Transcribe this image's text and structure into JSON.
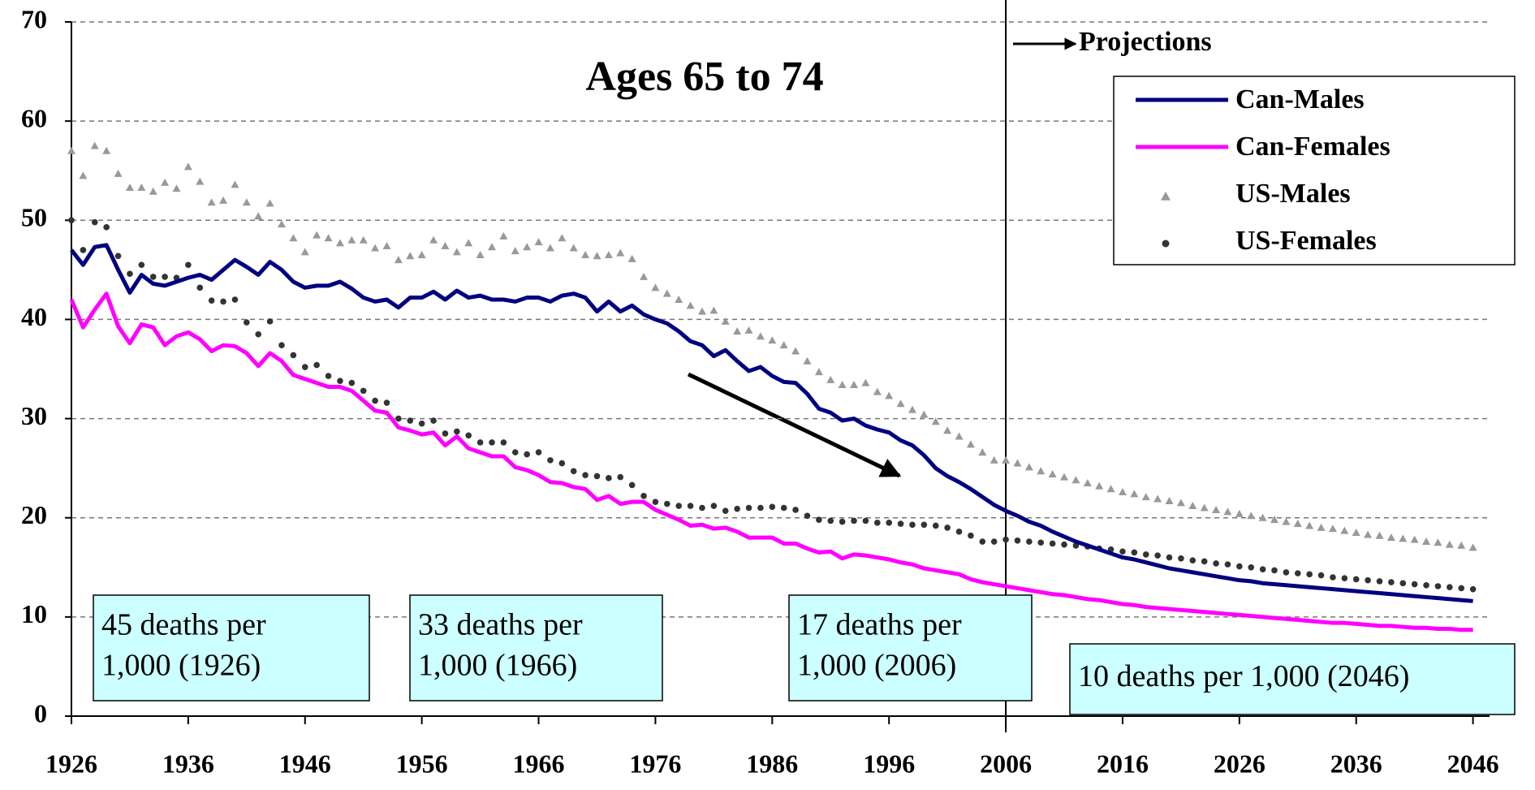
{
  "chart_data": {
    "type": "line",
    "title": "Ages 65 to 74",
    "projection_label": "Projections",
    "projection_x": 2006,
    "x": [
      1926,
      1927,
      1928,
      1929,
      1930,
      1931,
      1932,
      1933,
      1934,
      1935,
      1936,
      1937,
      1938,
      1939,
      1940,
      1941,
      1942,
      1943,
      1944,
      1945,
      1946,
      1947,
      1948,
      1949,
      1950,
      1951,
      1952,
      1953,
      1954,
      1955,
      1956,
      1957,
      1958,
      1959,
      1960,
      1961,
      1962,
      1963,
      1964,
      1965,
      1966,
      1967,
      1968,
      1969,
      1970,
      1971,
      1972,
      1973,
      1974,
      1975,
      1976,
      1977,
      1978,
      1979,
      1980,
      1981,
      1982,
      1983,
      1984,
      1985,
      1986,
      1987,
      1988,
      1989,
      1990,
      1991,
      1992,
      1993,
      1994,
      1995,
      1996,
      1997,
      1998,
      1999,
      2000,
      2001,
      2002,
      2003,
      2004,
      2005,
      2006,
      2007,
      2008,
      2009,
      2010,
      2011,
      2012,
      2013,
      2014,
      2015,
      2016,
      2017,
      2018,
      2019,
      2020,
      2021,
      2022,
      2023,
      2024,
      2025,
      2026,
      2027,
      2028,
      2029,
      2030,
      2031,
      2032,
      2033,
      2034,
      2035,
      2036,
      2037,
      2038,
      2039,
      2040,
      2041,
      2042,
      2043,
      2044,
      2045,
      2046
    ],
    "series": [
      {
        "name": "Can-Males",
        "color": "#000080",
        "style": "line",
        "values": [
          47,
          45.5,
          47.3,
          47.5,
          45,
          42.7,
          44.5,
          43.6,
          43.4,
          43.8,
          44.2,
          44.5,
          44,
          45,
          46,
          45.3,
          44.5,
          45.8,
          45,
          43.8,
          43.2,
          43.4,
          43.4,
          43.8,
          43.1,
          42.2,
          41.8,
          42,
          41.2,
          42.2,
          42.2,
          42.8,
          42,
          42.9,
          42.2,
          42.4,
          42,
          42,
          41.8,
          42.2,
          42.2,
          41.8,
          42.4,
          42.6,
          42.2,
          40.8,
          41.8,
          40.8,
          41.4,
          40.5,
          40,
          39.6,
          38.8,
          37.8,
          37.4,
          36.3,
          36.9,
          35.8,
          34.8,
          35.2,
          34.3,
          33.7,
          33.6,
          32.5,
          31,
          30.6,
          29.8,
          30,
          29.3,
          28.9,
          28.6,
          27.8,
          27.3,
          26.3,
          25,
          24.2,
          23.6,
          22.9,
          22.1,
          21.3,
          20.7,
          20.2,
          19.6,
          19.2,
          18.6,
          18.1,
          17.6,
          17.2,
          16.8,
          16.4,
          16,
          15.8,
          15.5,
          15.2,
          14.9,
          14.7,
          14.5,
          14.3,
          14.1,
          13.9,
          13.7,
          13.6,
          13.4,
          13.3,
          13.2,
          13.1,
          13,
          12.9,
          12.8,
          12.7,
          12.6,
          12.5,
          12.4,
          12.3,
          12.2,
          12.1,
          12,
          11.9,
          11.8,
          11.7,
          11.6
        ]
      },
      {
        "name": "Can-Females",
        "color": "#ff00ff",
        "style": "line",
        "values": [
          42,
          39.2,
          41,
          42.6,
          39.3,
          37.6,
          39.5,
          39.2,
          37.4,
          38.3,
          38.7,
          38,
          36.8,
          37.4,
          37.3,
          36.6,
          35.3,
          36.6,
          35.8,
          34.4,
          34,
          33.6,
          33.2,
          33.2,
          32.8,
          31.8,
          30.8,
          30.6,
          29.1,
          28.8,
          28.4,
          28.6,
          27.3,
          28.2,
          27,
          26.6,
          26.2,
          26.2,
          25.1,
          24.8,
          24.3,
          23.6,
          23.5,
          23.1,
          22.9,
          21.8,
          22.2,
          21.4,
          21.6,
          21.6,
          20.8,
          20.3,
          19.8,
          19.2,
          19.3,
          18.9,
          19,
          18.6,
          18,
          18,
          18,
          17.4,
          17.4,
          16.9,
          16.5,
          16.6,
          15.9,
          16.3,
          16.2,
          16,
          15.8,
          15.5,
          15.3,
          14.9,
          14.7,
          14.5,
          14.3,
          13.8,
          13.5,
          13.3,
          13.1,
          12.9,
          12.7,
          12.5,
          12.3,
          12.2,
          12,
          11.8,
          11.7,
          11.5,
          11.3,
          11.2,
          11,
          10.9,
          10.8,
          10.7,
          10.6,
          10.5,
          10.4,
          10.3,
          10.2,
          10.1,
          10,
          9.9,
          9.8,
          9.7,
          9.6,
          9.5,
          9.4,
          9.4,
          9.3,
          9.2,
          9.1,
          9.1,
          9,
          8.9,
          8.9,
          8.8,
          8.8,
          8.7,
          8.7
        ]
      },
      {
        "name": "US-Males",
        "color": "#999999",
        "style": "triangle",
        "values": [
          57,
          54.5,
          57.5,
          57,
          54.7,
          53.3,
          53.3,
          52.9,
          53.8,
          53.2,
          55.4,
          53.9,
          51.8,
          52,
          53.6,
          51.8,
          50.4,
          51.7,
          49.6,
          48.2,
          46.8,
          48.5,
          48.2,
          47.7,
          48,
          48,
          47.2,
          47.4,
          46,
          46.4,
          46.5,
          48,
          47.4,
          46.8,
          47.7,
          46.5,
          47.3,
          48.4,
          46.9,
          47.3,
          47.8,
          47.2,
          48.2,
          47.2,
          46.5,
          46.4,
          46.5,
          46.7,
          46.1,
          44.3,
          43.2,
          42.6,
          42,
          41.4,
          40.8,
          40.9,
          39.8,
          38.8,
          38.9,
          38.3,
          37.9,
          37.4,
          36.8,
          35.8,
          34.7,
          33.9,
          33.4,
          33.4,
          33.6,
          32.7,
          32.3,
          31.5,
          30.9,
          30.4,
          29.7,
          28.8,
          28.2,
          27.4,
          26.6,
          25.8,
          25.8,
          25.5,
          25.1,
          24.7,
          24.4,
          24.1,
          23.8,
          23.5,
          23.2,
          22.9,
          22.6,
          22.4,
          22.1,
          21.9,
          21.7,
          21.5,
          21.2,
          21,
          20.8,
          20.6,
          20.4,
          20.2,
          20,
          19.8,
          19.6,
          19.4,
          19.2,
          19,
          18.9,
          18.7,
          18.5,
          18.3,
          18.2,
          18,
          17.9,
          17.8,
          17.6,
          17.5,
          17.3,
          17.2,
          17
        ]
      },
      {
        "name": "US-Females",
        "color": "#333333",
        "style": "circle",
        "values": [
          50,
          47,
          49.8,
          49.3,
          46.4,
          44.6,
          45.5,
          44.3,
          44.3,
          44.2,
          45.5,
          43.2,
          41.9,
          41.8,
          42,
          39.7,
          38.5,
          39.8,
          37.4,
          36.4,
          35.2,
          35.4,
          34.3,
          33.8,
          33.6,
          32.8,
          31.8,
          31.6,
          30,
          29.8,
          29.5,
          29.8,
          28.5,
          28.7,
          28.3,
          27.6,
          27.6,
          27.6,
          26.6,
          26.4,
          26.6,
          25.8,
          25.5,
          24.7,
          24.3,
          24.2,
          24,
          24.1,
          23.3,
          22.2,
          21.6,
          21.4,
          21.2,
          21.2,
          21,
          21.2,
          20.7,
          20.9,
          21,
          21,
          21.1,
          21,
          20.8,
          20.2,
          19.8,
          19.7,
          19.6,
          19.7,
          19.7,
          19.5,
          19.5,
          19.4,
          19.3,
          19.3,
          19.2,
          19,
          18.6,
          18.2,
          17.6,
          17.6,
          17.8,
          17.7,
          17.6,
          17.5,
          17.4,
          17.3,
          17.2,
          17.1,
          16.9,
          16.8,
          16.6,
          16.5,
          16.3,
          16.2,
          16,
          15.9,
          15.7,
          15.6,
          15.4,
          15.3,
          15.1,
          15,
          14.8,
          14.7,
          14.5,
          14.4,
          14.3,
          14.2,
          14,
          13.9,
          13.8,
          13.7,
          13.6,
          13.5,
          13.4,
          13.3,
          13.2,
          13.1,
          13,
          12.9,
          12.8
        ]
      }
    ],
    "annotations": [
      {
        "lines": [
          "45 deaths per",
          "1,000 (1926)"
        ]
      },
      {
        "lines": [
          "33 deaths per",
          "1,000 (1966)"
        ]
      },
      {
        "lines": [
          "17 deaths per",
          "1,000 (2006)"
        ]
      },
      {
        "lines": [
          "10 deaths per 1,000 (2046)"
        ]
      }
    ],
    "xlim": [
      1926,
      2047
    ],
    "xticks": [
      1926,
      1936,
      1946,
      1956,
      1966,
      1976,
      1986,
      1996,
      2006,
      2016,
      2026,
      2036,
      2046
    ],
    "ylim": [
      0,
      70
    ],
    "yticks": [
      0,
      10,
      20,
      30,
      40,
      50,
      60,
      70
    ],
    "grid": true
  }
}
